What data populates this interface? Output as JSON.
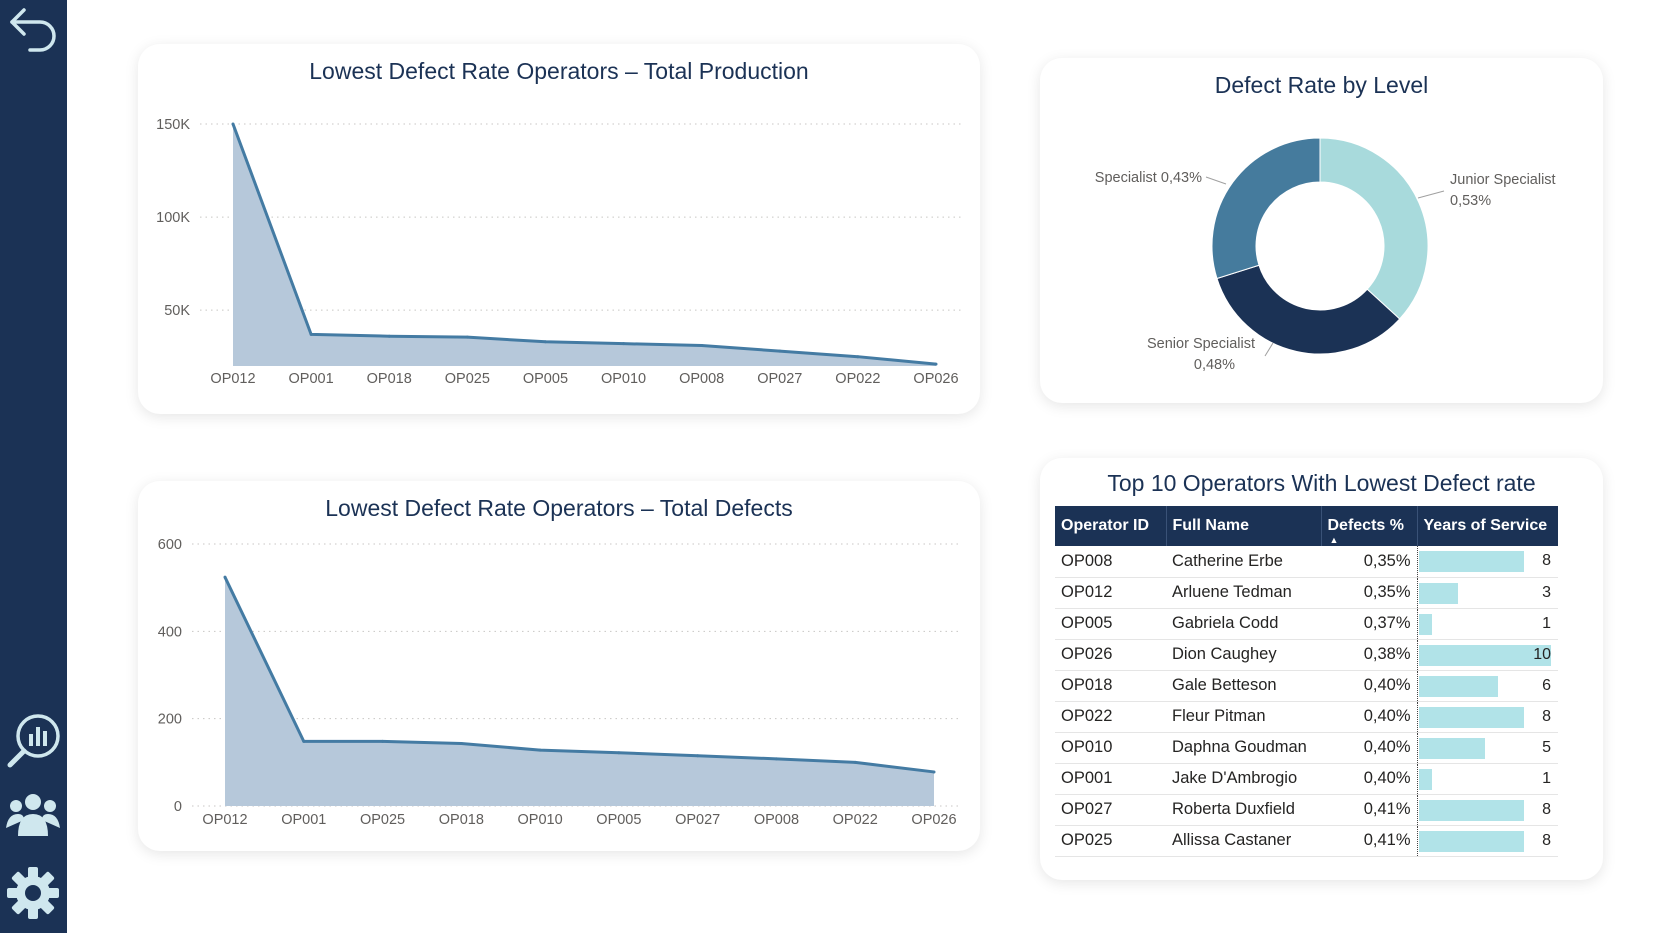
{
  "colors": {
    "sidebar": "#1b3255",
    "area_line": "#447ba3",
    "area_fill": "#b6c8da",
    "bar": "#b1e3e8"
  },
  "sidebar": {
    "icons": [
      "back-arrow-icon",
      "report-search-icon",
      "team-icon",
      "gear-icon"
    ]
  },
  "production_chart": {
    "title": "Lowest Defect Rate Operators – Total Production",
    "chart_data": {
      "type": "area",
      "categories": [
        "OP012",
        "OP001",
        "OP018",
        "OP025",
        "OP005",
        "OP010",
        "OP008",
        "OP027",
        "OP022",
        "OP026"
      ],
      "values": [
        150000,
        37000,
        36000,
        35500,
        33000,
        32000,
        31000,
        28000,
        25000,
        21000
      ],
      "y_ticks": [
        {
          "value": 150000,
          "label": "150K"
        },
        {
          "value": 100000,
          "label": "100K"
        },
        {
          "value": 50000,
          "label": "50K"
        }
      ],
      "ylim": [
        20000,
        150000
      ]
    }
  },
  "defects_chart": {
    "title": "Lowest Defect Rate Operators – Total Defects",
    "chart_data": {
      "type": "area",
      "categories": [
        "OP012",
        "OP001",
        "OP025",
        "OP018",
        "OP010",
        "OP005",
        "OP027",
        "OP008",
        "OP022",
        "OP026"
      ],
      "values": [
        524,
        148,
        148,
        143,
        128,
        122,
        115,
        108,
        100,
        78
      ],
      "y_ticks": [
        {
          "value": 600,
          "label": "600"
        },
        {
          "value": 400,
          "label": "400"
        },
        {
          "value": 200,
          "label": "200"
        },
        {
          "value": 0,
          "label": "0"
        }
      ],
      "ylim": [
        0,
        600
      ]
    }
  },
  "level_chart": {
    "title": "Defect Rate by Level",
    "chart_data": {
      "type": "pie",
      "donut": true,
      "slices": [
        {
          "label": "Junior Specialist",
          "value_label": "0,53%",
          "value": 0.53,
          "color": "#a8dadc"
        },
        {
          "label": "Senior Specialist",
          "value_label": "0,48%",
          "value": 0.48,
          "color": "#1b3255"
        },
        {
          "label": "Specialist",
          "value_label": "0,43%",
          "value": 0.43,
          "color": "#457b9d"
        }
      ]
    }
  },
  "operators_table": {
    "title": "Top 10 Operators With Lowest Defect rate",
    "columns": [
      "Operator ID",
      "Full Name",
      "Defects %",
      "Years of Service"
    ],
    "max_years": 10,
    "rows": [
      {
        "id": "OP008",
        "name": "Catherine Erbe",
        "defects": "0,35%",
        "years": 8
      },
      {
        "id": "OP012",
        "name": "Arluene Tedman",
        "defects": "0,35%",
        "years": 3
      },
      {
        "id": "OP005",
        "name": "Gabriela Codd",
        "defects": "0,37%",
        "years": 1
      },
      {
        "id": "OP026",
        "name": "Dion Caughey",
        "defects": "0,38%",
        "years": 10
      },
      {
        "id": "OP018",
        "name": "Gale Betteson",
        "defects": "0,40%",
        "years": 6
      },
      {
        "id": "OP022",
        "name": "Fleur Pitman",
        "defects": "0,40%",
        "years": 8
      },
      {
        "id": "OP010",
        "name": "Daphna Goudman",
        "defects": "0,40%",
        "years": 5
      },
      {
        "id": "OP001",
        "name": "Jake D'Ambrogio",
        "defects": "0,40%",
        "years": 1
      },
      {
        "id": "OP027",
        "name": "Roberta Duxfield",
        "defects": "0,41%",
        "years": 8
      },
      {
        "id": "OP025",
        "name": "Allissa Castaner",
        "defects": "0,41%",
        "years": 8
      }
    ]
  }
}
